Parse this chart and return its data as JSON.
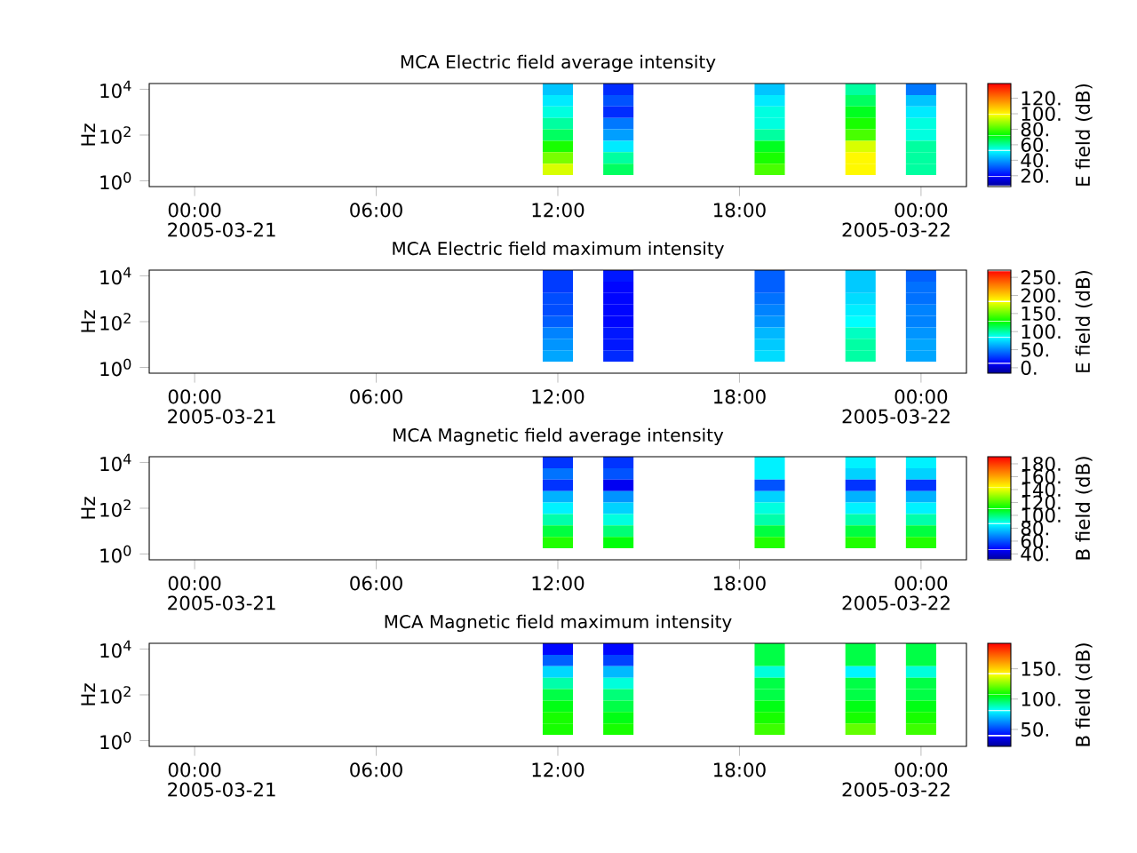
{
  "chart_data": [
    {
      "type": "heatmap",
      "title": "MCA  Electric field average intensity",
      "ylabel": "Hz",
      "clabel": "E field (dB)",
      "categories": [
        null,
        "00:00",
        null,
        null,
        null,
        null,
        null,
        "06:00",
        null,
        null,
        null,
        null,
        null,
        "12:00",
        null,
        null,
        null,
        null,
        null,
        "18:00",
        null,
        null,
        null,
        null,
        null,
        "00:00",
        null
      ],
      "y_categories": [
        "10$^{4}$",
        null,
        null,
        null,
        "10$^{2}$",
        null,
        null,
        null,
        "10$^{0}$"
      ],
      "cells": [
        [
          null,
          null,
          null,
          null,
          null,
          null,
          null,
          null,
          null,
          null,
          null,
          null,
          null,
          45,
          null,
          25,
          null,
          null,
          null,
          null,
          45,
          null,
          null,
          60,
          null,
          35,
          null
        ],
        [
          null,
          null,
          null,
          null,
          null,
          null,
          null,
          null,
          null,
          null,
          null,
          null,
          null,
          50,
          null,
          30,
          null,
          null,
          null,
          null,
          50,
          null,
          null,
          65,
          null,
          45,
          null
        ],
        [
          null,
          null,
          null,
          null,
          null,
          null,
          null,
          null,
          null,
          null,
          null,
          null,
          null,
          55,
          null,
          25,
          null,
          null,
          null,
          null,
          55,
          null,
          null,
          70,
          null,
          50,
          null
        ],
        [
          null,
          null,
          null,
          null,
          null,
          null,
          null,
          null,
          null,
          null,
          null,
          null,
          null,
          60,
          null,
          35,
          null,
          null,
          null,
          null,
          55,
          null,
          null,
          75,
          null,
          55,
          null
        ],
        [
          null,
          null,
          null,
          null,
          null,
          null,
          null,
          null,
          null,
          null,
          null,
          null,
          null,
          65,
          null,
          40,
          null,
          null,
          null,
          null,
          60,
          null,
          null,
          80,
          null,
          55,
          null
        ],
        [
          null,
          null,
          null,
          null,
          null,
          null,
          null,
          null,
          null,
          null,
          null,
          null,
          null,
          75,
          null,
          50,
          null,
          null,
          null,
          null,
          70,
          null,
          null,
          95,
          null,
          60,
          null
        ],
        [
          null,
          null,
          null,
          null,
          null,
          null,
          null,
          null,
          null,
          null,
          null,
          null,
          null,
          85,
          null,
          60,
          null,
          null,
          null,
          null,
          75,
          null,
          null,
          100,
          null,
          60,
          null
        ],
        [
          null,
          null,
          null,
          null,
          null,
          null,
          null,
          null,
          null,
          null,
          null,
          null,
          null,
          95,
          null,
          65,
          null,
          null,
          null,
          null,
          80,
          null,
          null,
          100,
          null,
          60,
          null
        ],
        [
          null,
          null,
          null,
          null,
          null,
          null,
          null,
          null,
          null,
          null,
          null,
          null,
          null,
          null,
          null,
          null,
          null,
          null,
          null,
          null,
          null,
          null,
          null,
          null,
          null,
          null,
          null
        ]
      ],
      "clim": [
        6,
        139
      ],
      "cticks": [
        {
          "value": 20,
          "label": "20."
        },
        {
          "value": 40,
          "label": "40."
        },
        {
          "value": 60,
          "label": "60."
        },
        {
          "value": 80,
          "label": "80."
        },
        {
          "value": 100,
          "label": "100."
        },
        {
          "value": 120,
          "label": "120."
        }
      ],
      "annotations": [
        "2005-03-21",
        "2005-03-22"
      ]
    },
    {
      "type": "heatmap",
      "title": "MCA  Electric field maximum intensity",
      "ylabel": "Hz",
      "clabel": "E field (dB)",
      "categories": [
        null,
        "00:00",
        null,
        null,
        null,
        null,
        null,
        "06:00",
        null,
        null,
        null,
        null,
        null,
        "12:00",
        null,
        null,
        null,
        null,
        null,
        "18:00",
        null,
        null,
        null,
        null,
        null,
        "00:00",
        null
      ],
      "y_categories": [
        "10$^{4}$",
        null,
        null,
        null,
        "10$^{2}$",
        null,
        null,
        null,
        "10$^{0}$"
      ],
      "cells": [
        [
          null,
          null,
          null,
          null,
          null,
          null,
          null,
          null,
          null,
          null,
          null,
          null,
          null,
          30,
          null,
          20,
          null,
          null,
          null,
          null,
          40,
          null,
          null,
          70,
          null,
          40,
          null
        ],
        [
          null,
          null,
          null,
          null,
          null,
          null,
          null,
          null,
          null,
          null,
          null,
          null,
          null,
          30,
          null,
          15,
          null,
          null,
          null,
          null,
          40,
          null,
          null,
          70,
          null,
          45,
          null
        ],
        [
          null,
          null,
          null,
          null,
          null,
          null,
          null,
          null,
          null,
          null,
          null,
          null,
          null,
          35,
          null,
          15,
          null,
          null,
          null,
          null,
          45,
          null,
          null,
          75,
          null,
          45,
          null
        ],
        [
          null,
          null,
          null,
          null,
          null,
          null,
          null,
          null,
          null,
          null,
          null,
          null,
          null,
          35,
          null,
          15,
          null,
          null,
          null,
          null,
          50,
          null,
          null,
          80,
          null,
          50,
          null
        ],
        [
          null,
          null,
          null,
          null,
          null,
          null,
          null,
          null,
          null,
          null,
          null,
          null,
          null,
          40,
          null,
          15,
          null,
          null,
          null,
          null,
          55,
          null,
          null,
          85,
          null,
          50,
          null
        ],
        [
          null,
          null,
          null,
          null,
          null,
          null,
          null,
          null,
          null,
          null,
          null,
          null,
          null,
          50,
          null,
          20,
          null,
          null,
          null,
          null,
          65,
          null,
          null,
          95,
          null,
          55,
          null
        ],
        [
          null,
          null,
          null,
          null,
          null,
          null,
          null,
          null,
          null,
          null,
          null,
          null,
          null,
          55,
          null,
          20,
          null,
          null,
          null,
          null,
          70,
          null,
          null,
          100,
          null,
          60,
          null
        ],
        [
          null,
          null,
          null,
          null,
          null,
          null,
          null,
          null,
          null,
          null,
          null,
          null,
          null,
          60,
          null,
          25,
          null,
          null,
          null,
          null,
          75,
          null,
          null,
          100,
          null,
          60,
          null
        ],
        [
          null,
          null,
          null,
          null,
          null,
          null,
          null,
          null,
          null,
          null,
          null,
          null,
          null,
          null,
          null,
          null,
          null,
          null,
          null,
          null,
          null,
          null,
          null,
          null,
          null,
          null,
          null
        ]
      ],
      "clim": [
        -15,
        270
      ],
      "cticks": [
        {
          "value": 0,
          "label": "0."
        },
        {
          "value": 50,
          "label": "50."
        },
        {
          "value": 100,
          "label": "100."
        },
        {
          "value": 150,
          "label": "150."
        },
        {
          "value": 200,
          "label": "200."
        },
        {
          "value": 250,
          "label": "250."
        }
      ],
      "annotations": [
        "2005-03-21",
        "2005-03-22"
      ]
    },
    {
      "type": "heatmap",
      "title": "MCA  Magnetic field average intensity",
      "ylabel": "Hz",
      "clabel": "B field (dB)",
      "categories": [
        null,
        "00:00",
        null,
        null,
        null,
        null,
        null,
        "06:00",
        null,
        null,
        null,
        null,
        null,
        "12:00",
        null,
        null,
        null,
        null,
        null,
        "18:00",
        null,
        null,
        null,
        null,
        null,
        "00:00",
        null
      ],
      "y_categories": [
        "10$^{4}$",
        null,
        null,
        null,
        "10$^{2}$",
        null,
        null,
        null,
        "10$^{0}$"
      ],
      "cells": [
        [
          null,
          null,
          null,
          null,
          null,
          null,
          null,
          null,
          null,
          null,
          null,
          null,
          null,
          55,
          null,
          55,
          null,
          null,
          null,
          null,
          85,
          null,
          null,
          85,
          null,
          85,
          null
        ],
        [
          null,
          null,
          null,
          null,
          null,
          null,
          null,
          null,
          null,
          null,
          null,
          null,
          null,
          65,
          null,
          60,
          null,
          null,
          null,
          null,
          85,
          null,
          null,
          80,
          null,
          80,
          null
        ],
        [
          null,
          null,
          null,
          null,
          null,
          null,
          null,
          null,
          null,
          null,
          null,
          null,
          null,
          55,
          null,
          45,
          null,
          null,
          null,
          null,
          60,
          null,
          null,
          55,
          null,
          55,
          null
        ],
        [
          null,
          null,
          null,
          null,
          null,
          null,
          null,
          null,
          null,
          null,
          null,
          null,
          null,
          75,
          null,
          70,
          null,
          null,
          null,
          null,
          80,
          null,
          null,
          75,
          null,
          75,
          null
        ],
        [
          null,
          null,
          null,
          null,
          null,
          null,
          null,
          null,
          null,
          null,
          null,
          null,
          null,
          85,
          null,
          80,
          null,
          null,
          null,
          null,
          90,
          null,
          null,
          85,
          null,
          85,
          null
        ],
        [
          null,
          null,
          null,
          null,
          null,
          null,
          null,
          null,
          null,
          null,
          null,
          null,
          null,
          95,
          null,
          90,
          null,
          null,
          null,
          null,
          95,
          null,
          null,
          95,
          null,
          95,
          null
        ],
        [
          null,
          null,
          null,
          null,
          null,
          null,
          null,
          null,
          null,
          null,
          null,
          null,
          null,
          105,
          null,
          100,
          null,
          null,
          null,
          null,
          105,
          null,
          null,
          105,
          null,
          105,
          null
        ],
        [
          null,
          null,
          null,
          null,
          null,
          null,
          null,
          null,
          null,
          null,
          null,
          null,
          null,
          115,
          null,
          110,
          null,
          null,
          null,
          null,
          115,
          null,
          null,
          115,
          null,
          115,
          null
        ],
        [
          null,
          null,
          null,
          null,
          null,
          null,
          null,
          null,
          null,
          null,
          null,
          null,
          null,
          null,
          null,
          null,
          null,
          null,
          null,
          null,
          null,
          null,
          null,
          null,
          null,
          null,
          null
        ]
      ],
      "clim": [
        31,
        191
      ],
      "cticks": [
        {
          "value": 40,
          "label": "40."
        },
        {
          "value": 60,
          "label": "60."
        },
        {
          "value": 80,
          "label": "80."
        },
        {
          "value": 100,
          "label": "100."
        },
        {
          "value": 120,
          "label": "120."
        },
        {
          "value": 140,
          "label": "140."
        },
        {
          "value": 160,
          "label": "160."
        },
        {
          "value": 180,
          "label": "180."
        }
      ],
      "annotations": [
        "2005-03-21",
        "2005-03-22"
      ]
    },
    {
      "type": "heatmap",
      "title": "MCA  Magnetic field maximum intensity",
      "ylabel": "Hz",
      "clabel": "B field (dB)",
      "categories": [
        null,
        "00:00",
        null,
        null,
        null,
        null,
        null,
        "06:00",
        null,
        null,
        null,
        null,
        null,
        "12:00",
        null,
        null,
        null,
        null,
        null,
        "18:00",
        null,
        null,
        null,
        null,
        null,
        "00:00",
        null
      ],
      "y_categories": [
        "10$^{4}$",
        null,
        null,
        null,
        "10$^{2}$",
        null,
        null,
        null,
        "10$^{0}$"
      ],
      "cells": [
        [
          null,
          null,
          null,
          null,
          null,
          null,
          null,
          null,
          null,
          null,
          null,
          null,
          null,
          40,
          null,
          40,
          null,
          null,
          null,
          null,
          100,
          null,
          null,
          100,
          null,
          100,
          null
        ],
        [
          null,
          null,
          null,
          null,
          null,
          null,
          null,
          null,
          null,
          null,
          null,
          null,
          null,
          55,
          null,
          50,
          null,
          null,
          null,
          null,
          100,
          null,
          null,
          100,
          null,
          100,
          null
        ],
        [
          null,
          null,
          null,
          null,
          null,
          null,
          null,
          null,
          null,
          null,
          null,
          null,
          null,
          75,
          null,
          70,
          null,
          null,
          null,
          null,
          85,
          null,
          null,
          80,
          null,
          85,
          null
        ],
        [
          null,
          null,
          null,
          null,
          null,
          null,
          null,
          null,
          null,
          null,
          null,
          null,
          null,
          90,
          null,
          85,
          null,
          null,
          null,
          null,
          100,
          null,
          null,
          100,
          null,
          100,
          null
        ],
        [
          null,
          null,
          null,
          null,
          null,
          null,
          null,
          null,
          null,
          null,
          null,
          null,
          null,
          100,
          null,
          95,
          null,
          null,
          null,
          null,
          100,
          null,
          null,
          100,
          null,
          100,
          null
        ],
        [
          null,
          null,
          null,
          null,
          null,
          null,
          null,
          null,
          null,
          null,
          null,
          null,
          null,
          105,
          null,
          100,
          null,
          null,
          null,
          null,
          105,
          null,
          null,
          105,
          null,
          105,
          null
        ],
        [
          null,
          null,
          null,
          null,
          null,
          null,
          null,
          null,
          null,
          null,
          null,
          null,
          null,
          110,
          null,
          105,
          null,
          null,
          null,
          null,
          110,
          null,
          null,
          110,
          null,
          110,
          null
        ],
        [
          null,
          null,
          null,
          null,
          null,
          null,
          null,
          null,
          null,
          null,
          null,
          null,
          null,
          110,
          null,
          110,
          null,
          null,
          null,
          null,
          115,
          null,
          null,
          120,
          null,
          115,
          null
        ],
        [
          null,
          null,
          null,
          null,
          null,
          null,
          null,
          null,
          null,
          null,
          null,
          null,
          null,
          null,
          null,
          null,
          null,
          null,
          null,
          null,
          null,
          null,
          null,
          null,
          null,
          null,
          null
        ]
      ],
      "clim": [
        22,
        192
      ],
      "cticks": [
        {
          "value": 50,
          "label": "50."
        },
        {
          "value": 100,
          "label": "100."
        },
        {
          "value": 150,
          "label": "150."
        }
      ],
      "annotations": [
        "2005-03-21",
        "2005-03-22"
      ]
    }
  ]
}
